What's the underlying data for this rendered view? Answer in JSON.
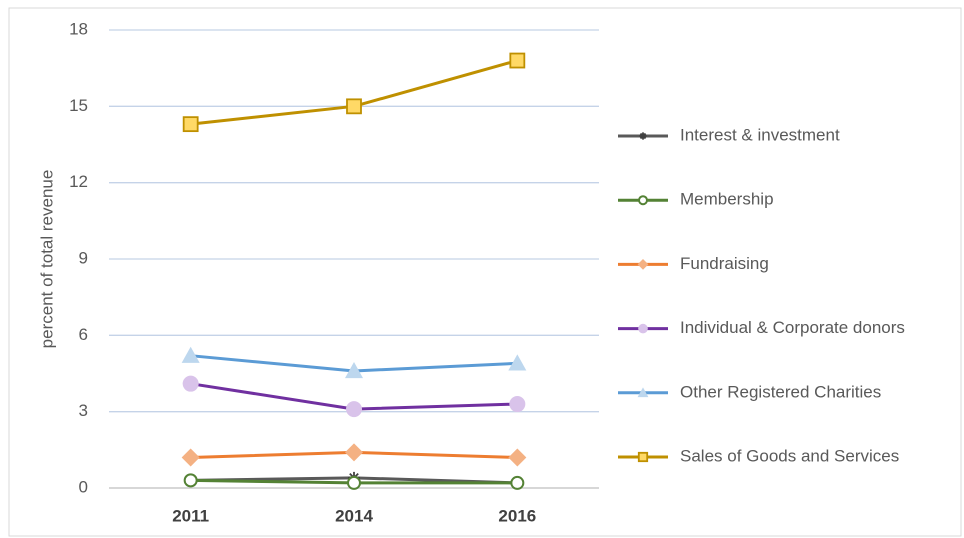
{
  "chart_data": {
    "type": "line",
    "y_label": "percent of total revenue",
    "categories": [
      "2011",
      "2014",
      "2016"
    ],
    "series": [
      {
        "name": "Interest &  investment",
        "color": "#595959",
        "marker_color": "#404040",
        "values": [
          0.3,
          0.4,
          0.2
        ]
      },
      {
        "name": "Membership",
        "color": "#548235",
        "marker_color": "#ffffff",
        "values": [
          0.3,
          0.2,
          0.2
        ]
      },
      {
        "name": "Fundraising",
        "color": "#ed7d31",
        "marker_color": "#f4b183",
        "values": [
          1.2,
          1.4,
          1.2
        ]
      },
      {
        "name": "Individual & Corporate donors",
        "color": "#7030a0",
        "marker_color": "#d9c3ea",
        "values": [
          4.1,
          3.1,
          3.3
        ]
      },
      {
        "name": "Other Registered Charities",
        "color": "#5b9bd5",
        "marker_color": "#bdd7ee",
        "values": [
          5.2,
          4.6,
          4.9
        ]
      },
      {
        "name": "Sales of Goods and Services",
        "color": "#bf9000",
        "marker_color": "#ffd966",
        "values": [
          14.3,
          15.0,
          16.8
        ]
      }
    ],
    "ylim": [
      0,
      18
    ],
    "yticks": [
      0,
      3,
      6,
      9,
      12,
      15,
      18
    ],
    "grid": true,
    "legend": "right"
  }
}
